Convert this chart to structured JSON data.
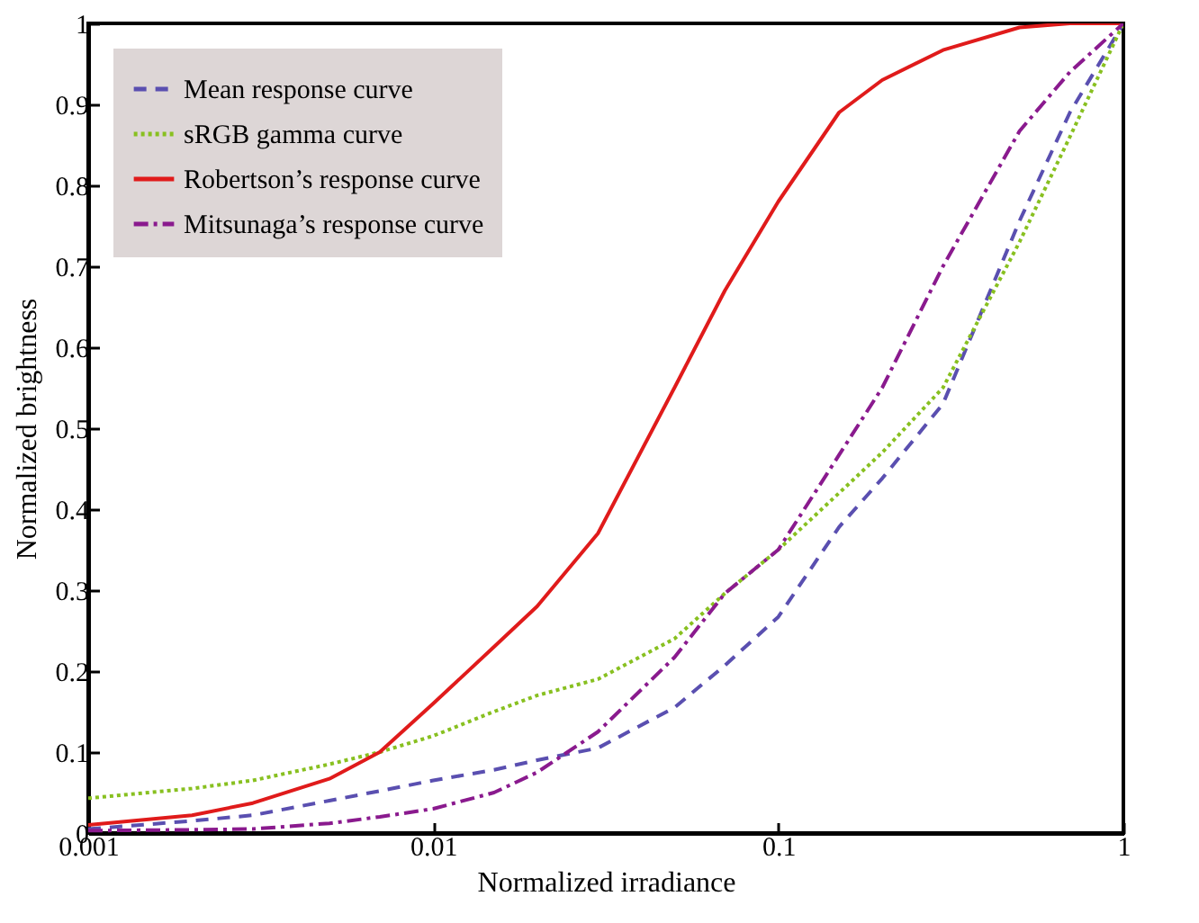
{
  "chart_data": {
    "type": "line",
    "xlabel": "Normalized irradiance",
    "ylabel": "Normalized brightness",
    "log": "x",
    "xlim": [
      0.001,
      1
    ],
    "xticks": [
      0.001,
      0.01,
      0.1,
      1
    ],
    "ylim": [
      0,
      1
    ],
    "yticks": [
      0,
      0.1,
      0.2,
      0.3,
      0.4,
      0.5,
      0.6,
      0.7,
      0.8,
      0.9,
      1
    ],
    "legend": "top left",
    "grid": false,
    "marker": "none",
    "x": [
      0.001,
      0.002,
      0.003,
      0.005,
      0.007,
      0.01,
      0.015,
      0.02,
      0.03,
      0.05,
      0.07,
      0.1,
      0.15,
      0.2,
      0.3,
      0.5,
      0.7,
      1
    ],
    "series": [
      {
        "name": "Mean response curve",
        "color": "#5a4fb0",
        "line_style": "dashed",
        "values": [
          0.005,
          0.015,
          0.022,
          0.04,
          0.052,
          0.065,
          0.078,
          0.09,
          0.105,
          0.155,
          0.207,
          0.267,
          0.378,
          0.438,
          0.53,
          0.756,
          0.89,
          1
        ]
      },
      {
        "name": "sRGB gamma curve",
        "color": "#88c020",
        "line_style": "dotted",
        "values": [
          0.043,
          0.055,
          0.065,
          0.085,
          0.1,
          0.12,
          0.15,
          0.17,
          0.19,
          0.24,
          0.296,
          0.35,
          0.42,
          0.47,
          0.55,
          0.73,
          0.86,
          1
        ]
      },
      {
        "name": "Robertson’s response curve",
        "color": "#e01b1b",
        "line_style": "solid",
        "values": [
          0.01,
          0.022,
          0.037,
          0.067,
          0.1,
          0.16,
          0.23,
          0.28,
          0.37,
          0.55,
          0.67,
          0.78,
          0.89,
          0.93,
          0.967,
          0.995,
          1,
          1
        ]
      },
      {
        "name": "Mitsunaga’s response curve",
        "color": "#8a1a8e",
        "line_style": "dashdot",
        "values": [
          0.003,
          0.004,
          0.005,
          0.012,
          0.02,
          0.03,
          0.05,
          0.075,
          0.125,
          0.217,
          0.296,
          0.35,
          0.467,
          0.55,
          0.7,
          0.867,
          0.94,
          1
        ]
      }
    ]
  }
}
